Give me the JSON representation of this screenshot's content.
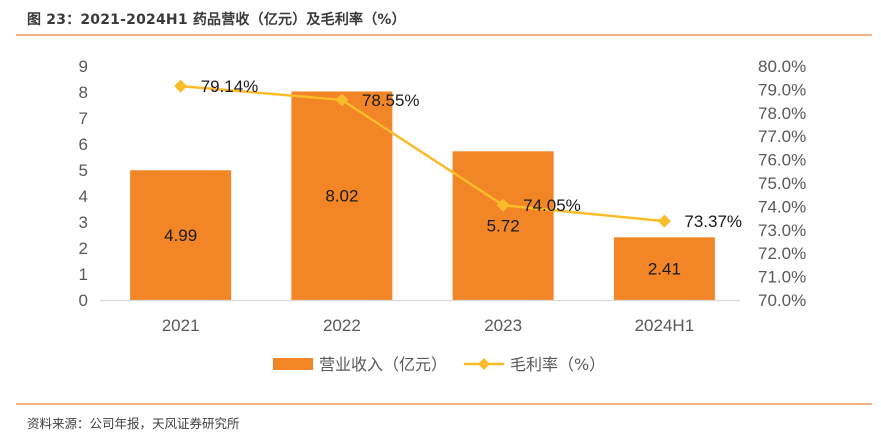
{
  "header": {
    "title": "图 23：2021-2024H1 药品营收（亿元）及毛利率（%）"
  },
  "footer": {
    "source": "资料来源：公司年报，天风证券研究所"
  },
  "colors": {
    "bar": "#f28526",
    "line": "#fbbc2a",
    "axis_line": "#d9d9d9",
    "rule": "#f4b183"
  },
  "chart_data": {
    "type": "bar+line",
    "title": "2021-2024H1 药品营收（亿元）及毛利率（%）",
    "categories": [
      "2021",
      "2022",
      "2023",
      "2024H1"
    ],
    "series": [
      {
        "name": "营业收入（亿元）",
        "type": "bar",
        "axis": "left",
        "values": [
          4.99,
          8.02,
          5.72,
          2.41
        ],
        "labels": [
          "4.99",
          "8.02",
          "5.72",
          "2.41"
        ]
      },
      {
        "name": "毛利率（%）",
        "type": "line",
        "axis": "right",
        "marker": "diamond",
        "values": [
          79.14,
          78.55,
          74.05,
          73.37
        ],
        "labels": [
          "79.14%",
          "78.55%",
          "74.05%",
          "73.37%"
        ]
      }
    ],
    "y_left": {
      "min": 0,
      "max": 9,
      "step": 1,
      "ticks": [
        "0",
        "1",
        "2",
        "3",
        "4",
        "5",
        "6",
        "7",
        "8",
        "9"
      ]
    },
    "y_right": {
      "min": 70,
      "max": 80,
      "step": 1,
      "ticks": [
        "70.0%",
        "71.0%",
        "72.0%",
        "73.0%",
        "74.0%",
        "75.0%",
        "76.0%",
        "77.0%",
        "78.0%",
        "79.0%",
        "80.0%"
      ]
    },
    "grid": false,
    "legend": {
      "position": "bottom",
      "entries": [
        "营业收入（亿元）",
        "毛利率（%）"
      ]
    }
  }
}
